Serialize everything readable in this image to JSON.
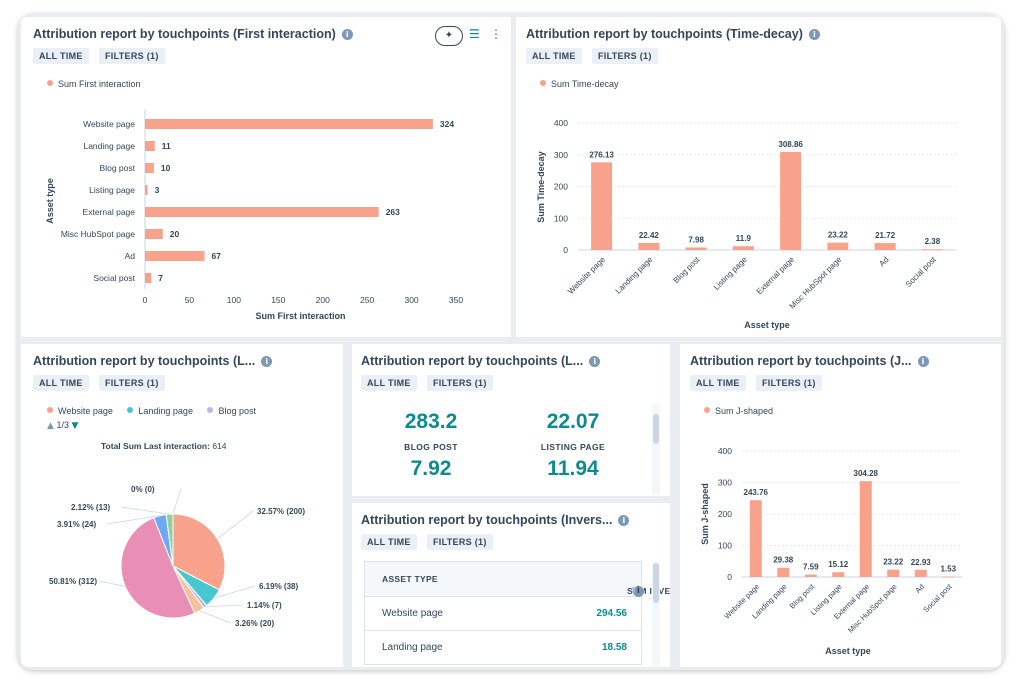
{
  "colors": {
    "salmon": "#f8a28b",
    "teal": "#47c7cf",
    "lavender": "#b7b7f0",
    "pink": "#e98eb4",
    "blue": "#6ea8f2",
    "sand": "#f5c19b",
    "green": "#8fd19e",
    "accent": "#0b8a8f"
  },
  "tags": {
    "all_time": "ALL TIME",
    "filters": "FILTERS (1)"
  },
  "card1": {
    "title": "Attribution report by touchpoints (First interaction)",
    "legend": "Sum First interaction",
    "icons": [
      "sparkle-icon",
      "filter-sliders-icon",
      "more-vertical-icon"
    ],
    "chart_data": {
      "type": "bar",
      "orientation": "horizontal",
      "categories": [
        "Website page",
        "Landing page",
        "Blog post",
        "Listing page",
        "External page",
        "Misc HubSpot page",
        "Ad",
        "Social post"
      ],
      "values": [
        324,
        11,
        10,
        3,
        263,
        20,
        67,
        7
      ],
      "xlabel": "Sum First interaction",
      "ylabel": "Asset type",
      "xticks": [
        0,
        50,
        100,
        150,
        200,
        250,
        300,
        350
      ],
      "xlim": [
        0,
        350
      ]
    }
  },
  "card2": {
    "title": "Attribution report by touchpoints (Time-decay)",
    "legend": "Sum Time-decay",
    "chart_data": {
      "type": "bar",
      "categories": [
        "Website page",
        "Landing page",
        "Blog post",
        "Listing page",
        "External page",
        "Misc HubSpot page",
        "Ad",
        "Social post"
      ],
      "values": [
        276.13,
        22.42,
        7.98,
        11.9,
        308.86,
        23.22,
        21.72,
        2.38
      ],
      "xlabel": "Asset type",
      "ylabel": "Sum Time-decay",
      "yticks": [
        0,
        100,
        200,
        300,
        400
      ],
      "ylim": [
        0,
        400
      ]
    }
  },
  "card3": {
    "title": "Attribution report by touchpoints (L...",
    "legend_items": [
      "Website page",
      "Landing page",
      "Blog post"
    ],
    "pager": "1/3",
    "total_label": "Total Sum Last interaction:",
    "total_value": "614",
    "chart_data": {
      "type": "pie",
      "slices": [
        {
          "label": "Website page",
          "percent": 32.57,
          "value": 200,
          "text": "32.57% (200)"
        },
        {
          "label": "Landing page",
          "percent": 6.19,
          "value": 38,
          "text": "6.19% (38)"
        },
        {
          "label": "Blog post",
          "percent": 1.14,
          "value": 7,
          "text": "1.14% (7)"
        },
        {
          "label": "",
          "percent": 3.26,
          "value": 20,
          "text": "3.26% (20)"
        },
        {
          "label": "",
          "percent": 50.81,
          "value": 312,
          "text": "50.81% (312)"
        },
        {
          "label": "",
          "percent": 3.91,
          "value": 24,
          "text": "3.91% (24)"
        },
        {
          "label": "",
          "percent": 2.12,
          "value": 13,
          "text": "2.12% (13)"
        },
        {
          "label": "",
          "percent": 0,
          "value": 0,
          "text": "0% (0)"
        }
      ]
    }
  },
  "card4": {
    "title": "Attribution report by touchpoints (L...",
    "kpis": [
      {
        "value": "283.2",
        "label": "BLOG POST"
      },
      {
        "value": "22.07",
        "label": "LISTING PAGE"
      },
      {
        "value": "7.92",
        "label": ""
      },
      {
        "value": "11.94",
        "label": ""
      }
    ]
  },
  "card5": {
    "title": "Attribution report by touchpoints (Invers...",
    "col1": "ASSET TYPE",
    "col2": "SUM INVERSE J-SHAPED",
    "rows": [
      {
        "asset": "Website page",
        "value": "294.56"
      },
      {
        "asset": "Landing page",
        "value": "18.58"
      }
    ]
  },
  "card6": {
    "title": "Attribution report by touchpoints (J...",
    "legend": "Sum J-shaped",
    "chart_data": {
      "type": "bar",
      "categories": [
        "Website page",
        "Landing page",
        "Blog post",
        "Listing page",
        "External page",
        "Misc HubSpot page",
        "Ad",
        "Social post"
      ],
      "values": [
        243.76,
        29.38,
        7.59,
        15.12,
        304.28,
        23.22,
        22.93,
        1.53
      ],
      "xlabel": "Asset type",
      "ylabel": "Sum J-shaped",
      "yticks": [
        0,
        100,
        200,
        300,
        400
      ],
      "ylim": [
        0,
        400
      ]
    }
  }
}
